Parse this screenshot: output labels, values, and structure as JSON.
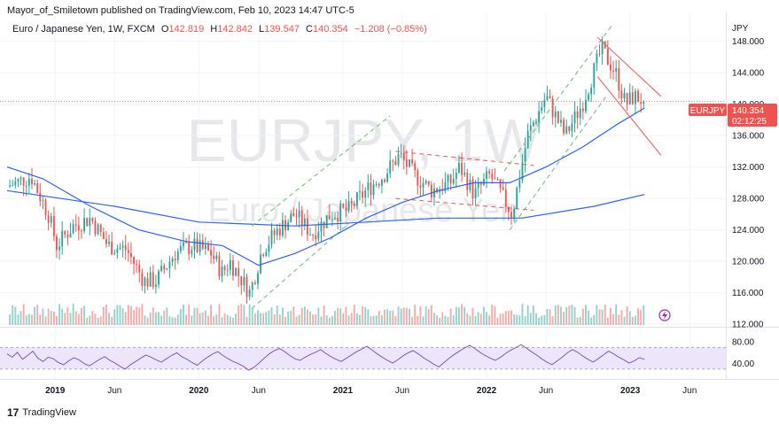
{
  "header": {
    "published_line": "Mayor_of_Smiletown published on TradingView.com, Feb 10, 2023 14:47 UTC-5"
  },
  "legend": {
    "symbol": "Euro / Japanese Yen, 1W, FXCM",
    "open_label": "O",
    "open": "142.819",
    "high_label": "H",
    "high": "142.842",
    "low_label": "L",
    "low": "139.547",
    "close_label": "C",
    "close": "140.354",
    "change": "−1.208 (−0.85%)"
  },
  "watermark": {
    "ticker": "EURJPY, 1W",
    "name": "Euro / Japanese Yen"
  },
  "price_axis": {
    "currency": "JPY",
    "last_price": "140.354",
    "countdown": "02:12:25",
    "symbol_tag": "EURJPY"
  },
  "rsi_axis": {
    "ticks": [
      "80.00",
      "40.00"
    ]
  },
  "footer": {
    "brand": "TradingView",
    "logo": "17"
  },
  "colors": {
    "up": "#26a69a",
    "down": "#ef5350",
    "ma": "#2962ff",
    "rsi": "#7e57c2",
    "rsi_band": "#ede5fa",
    "channel_green": "#66bb6a",
    "channel_red": "#ef5350"
  },
  "chart_data": {
    "type": "candlestick",
    "timeframe": "1W",
    "x_ticks": [
      "2019",
      "Jun",
      "2020",
      "Jun",
      "2021",
      "Jun",
      "2022",
      "Jun",
      "2023",
      "Jun"
    ],
    "y_ticks": [
      148,
      144,
      140,
      136,
      132,
      128,
      124,
      120,
      116,
      112
    ],
    "ylim": [
      111,
      151
    ],
    "last_close": 140.354,
    "price_path": [
      {
        "date": "2018-09-01",
        "price": 129.5
      },
      {
        "date": "2018-11-01",
        "price": 130.8
      },
      {
        "date": "2018-12-15",
        "price": 126.0
      },
      {
        "date": "2019-01-05",
        "price": 122.0
      },
      {
        "date": "2019-02-15",
        "price": 124.5
      },
      {
        "date": "2019-04-01",
        "price": 125.5
      },
      {
        "date": "2019-05-15",
        "price": 122.0
      },
      {
        "date": "2019-07-01",
        "price": 121.5
      },
      {
        "date": "2019-08-15",
        "price": 117.5
      },
      {
        "date": "2019-09-15",
        "price": 117.5
      },
      {
        "date": "2019-11-01",
        "price": 121.0
      },
      {
        "date": "2019-12-15",
        "price": 122.0
      },
      {
        "date": "2020-02-01",
        "price": 121.0
      },
      {
        "date": "2020-03-01",
        "price": 118.5
      },
      {
        "date": "2020-03-20",
        "price": 120.0
      },
      {
        "date": "2020-05-10",
        "price": 116.0
      },
      {
        "date": "2020-06-10",
        "price": 121.5
      },
      {
        "date": "2020-07-20",
        "price": 124.0
      },
      {
        "date": "2020-09-01",
        "price": 126.0
      },
      {
        "date": "2020-10-15",
        "price": 123.5
      },
      {
        "date": "2020-12-01",
        "price": 126.0
      },
      {
        "date": "2021-01-15",
        "price": 126.5
      },
      {
        "date": "2021-03-01",
        "price": 129.0
      },
      {
        "date": "2021-04-15",
        "price": 131.0
      },
      {
        "date": "2021-05-25",
        "price": 133.5
      },
      {
        "date": "2021-07-01",
        "price": 131.0
      },
      {
        "date": "2021-08-15",
        "price": 129.0
      },
      {
        "date": "2021-10-01",
        "price": 130.0
      },
      {
        "date": "2021-10-25",
        "price": 132.0
      },
      {
        "date": "2021-12-01",
        "price": 128.5
      },
      {
        "date": "2022-01-10",
        "price": 131.0
      },
      {
        "date": "2022-03-07",
        "price": 126.0
      },
      {
        "date": "2022-04-15",
        "price": 136.0
      },
      {
        "date": "2022-06-01",
        "price": 141.0
      },
      {
        "date": "2022-06-20",
        "price": 139.0
      },
      {
        "date": "2022-07-20",
        "price": 136.0
      },
      {
        "date": "2022-09-01",
        "price": 140.0
      },
      {
        "date": "2022-10-20",
        "price": 147.0
      },
      {
        "date": "2022-11-25",
        "price": 144.0
      },
      {
        "date": "2022-12-20",
        "price": 140.0
      },
      {
        "date": "2023-01-10",
        "price": 141.0
      },
      {
        "date": "2023-02-06",
        "price": 140.4
      }
    ],
    "moving_average_fast": [
      {
        "date": "2018-09-01",
        "price": 132.0
      },
      {
        "date": "2018-12-01",
        "price": 130.5
      },
      {
        "date": "2019-04-01",
        "price": 127.0
      },
      {
        "date": "2019-08-01",
        "price": 124.0
      },
      {
        "date": "2019-12-01",
        "price": 122.5
      },
      {
        "date": "2020-03-01",
        "price": 122.0
      },
      {
        "date": "2020-06-01",
        "price": 119.5
      },
      {
        "date": "2020-09-01",
        "price": 121.0
      },
      {
        "date": "2020-12-01",
        "price": 123.0
      },
      {
        "date": "2021-03-01",
        "price": 125.5
      },
      {
        "date": "2021-06-01",
        "price": 127.5
      },
      {
        "date": "2021-09-01",
        "price": 129.0
      },
      {
        "date": "2021-12-01",
        "price": 130.0
      },
      {
        "date": "2022-03-01",
        "price": 130.0
      },
      {
        "date": "2022-06-01",
        "price": 132.0
      },
      {
        "date": "2022-09-01",
        "price": 134.5
      },
      {
        "date": "2022-12-01",
        "price": 137.5
      },
      {
        "date": "2023-02-06",
        "price": 139.5
      }
    ],
    "moving_average_slow": [
      {
        "date": "2018-09-01",
        "price": 129.0
      },
      {
        "date": "2019-06-01",
        "price": 127.0
      },
      {
        "date": "2020-01-01",
        "price": 125.0
      },
      {
        "date": "2020-09-01",
        "price": 124.5
      },
      {
        "date": "2021-03-01",
        "price": 125.0
      },
      {
        "date": "2021-09-01",
        "price": 125.5
      },
      {
        "date": "2022-04-01",
        "price": 125.5
      },
      {
        "date": "2022-10-01",
        "price": 127.0
      },
      {
        "date": "2023-02-06",
        "price": 128.5
      }
    ],
    "rsi_series": [
      58,
      52,
      61,
      48,
      55,
      63,
      50,
      44,
      52,
      49,
      42,
      38,
      45,
      51,
      47,
      40,
      36,
      42,
      48,
      53,
      46,
      41,
      35,
      30,
      38,
      44,
      50,
      56,
      52,
      47,
      43,
      49,
      55,
      60,
      53,
      48,
      42,
      37,
      45,
      52,
      58,
      62,
      55,
      49,
      44,
      40,
      35,
      28,
      33,
      41,
      50,
      58,
      64,
      68,
      62,
      55,
      49,
      46,
      52,
      57,
      61,
      66,
      59,
      53,
      48,
      44,
      50,
      56,
      62,
      67,
      72,
      65,
      58,
      52,
      46,
      41,
      47,
      54,
      60,
      64,
      58,
      51,
      45,
      39,
      34,
      42,
      50,
      57,
      63,
      69,
      74,
      68,
      61,
      55,
      50,
      46,
      52,
      59,
      65,
      70,
      75,
      69,
      62,
      56,
      49,
      43,
      38,
      45,
      52,
      60,
      66,
      61,
      54,
      48,
      43,
      49,
      56,
      63,
      58,
      52,
      47,
      41,
      45,
      51,
      48
    ],
    "rsi_ylim": [
      15,
      100
    ],
    "rsi_band": [
      30,
      70
    ]
  }
}
